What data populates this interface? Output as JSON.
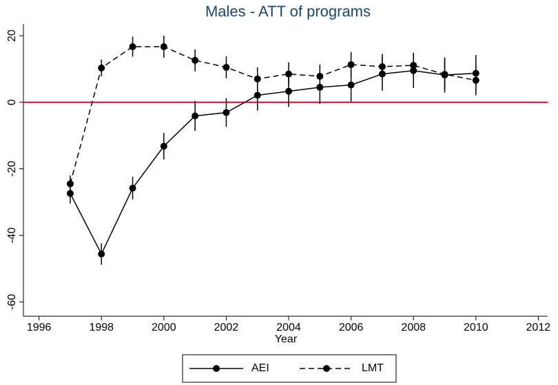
{
  "chart_data": {
    "type": "line",
    "title": "Males - ATT of programs",
    "x_label": "Year",
    "x": [
      1997,
      1998,
      1999,
      2000,
      2001,
      2002,
      2003,
      2004,
      2005,
      2006,
      2007,
      2008,
      2009,
      2010
    ],
    "series": [
      {
        "name": "AEI",
        "color": "#000000",
        "dash": "solid",
        "values": [
          -27.4,
          -45.6,
          -25.8,
          -13.2,
          -4.1,
          -3.1,
          2.1,
          3.3,
          4.5,
          5.2,
          8.5,
          9.5,
          8.2,
          8.7
        ],
        "errors": [
          3.0,
          3.2,
          3.4,
          4.0,
          4.5,
          4.3,
          4.6,
          4.7,
          5.0,
          5.0,
          5.0,
          5.2,
          5.3,
          5.5
        ]
      },
      {
        "name": "LMT",
        "color": "#000000",
        "dash": "dashed",
        "values": [
          -24.5,
          10.3,
          16.7,
          16.7,
          12.6,
          10.5,
          7.0,
          8.5,
          7.8,
          11.3,
          10.7,
          11.1,
          8.4,
          6.6
        ],
        "errors": [
          2.5,
          2.5,
          3.0,
          3.3,
          3.3,
          3.3,
          3.5,
          3.5,
          3.5,
          3.8,
          3.8,
          3.8,
          4.5,
          4.5
        ]
      }
    ],
    "xlim": [
      1995.5,
      2012.3
    ],
    "ylim": [
      -64.3,
      23.5
    ],
    "xticks": [
      1996,
      1998,
      2000,
      2002,
      2004,
      2006,
      2008,
      2010,
      2012
    ],
    "yticks": [
      -60,
      -40,
      -20,
      0,
      20
    ],
    "hline": 0,
    "hline_color": "#c8102e",
    "legend": "bottom"
  }
}
